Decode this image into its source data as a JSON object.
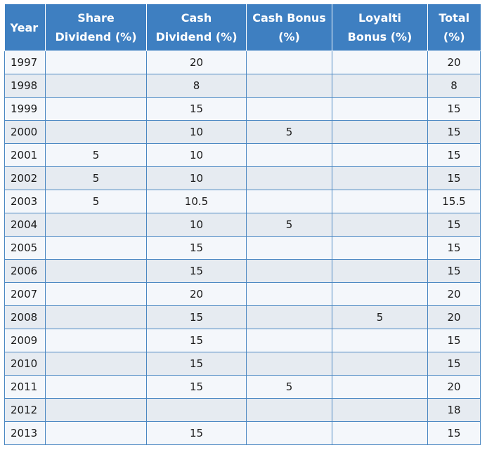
{
  "headers": {
    "year": "Year",
    "share_line1": "Share",
    "share_line2": "Dividend (%)",
    "cash_line1": "Cash",
    "cash_line2": "Dividend (%)",
    "bonus_line1": "Cash Bonus",
    "bonus_line2": "(%)",
    "loyalti_line1": "Loyalti",
    "loyalti_line2": "Bonus (%)",
    "total_line1": "Total",
    "total_line2": "(%)"
  },
  "rows": [
    [
      "1997",
      "",
      "20",
      "",
      "",
      "20"
    ],
    [
      "1998",
      "",
      "8",
      "",
      "",
      "8"
    ],
    [
      "1999",
      "",
      "15",
      "",
      "",
      "15"
    ],
    [
      "2000",
      "",
      "10",
      "5",
      "",
      "15"
    ],
    [
      "2001",
      "5",
      "10",
      "",
      "",
      "15"
    ],
    [
      "2002",
      "5",
      "10",
      "",
      "",
      "15"
    ],
    [
      "2003",
      "5",
      "10.5",
      "",
      "",
      "15.5"
    ],
    [
      "2004",
      "",
      "10",
      "5",
      "",
      "15"
    ],
    [
      "2005",
      "",
      "15",
      "",
      "",
      "15"
    ],
    [
      "2006",
      "",
      "15",
      "",
      "",
      "15"
    ],
    [
      "2007",
      "",
      "20",
      "",
      "",
      "20"
    ],
    [
      "2008",
      "",
      "15",
      "",
      "5",
      "20"
    ],
    [
      "2009",
      "",
      "15",
      "",
      "",
      "15"
    ],
    [
      "2010",
      "",
      "15",
      "",
      "",
      "15"
    ],
    [
      "2011",
      "",
      "15",
      "5",
      "",
      "20"
    ],
    [
      "2012",
      "",
      "",
      "",
      "",
      "18"
    ],
    [
      "2013",
      "",
      "15",
      "",
      "",
      "15"
    ]
  ],
  "colors": {
    "header_bg": "#3e7fc1",
    "row_odd": "#f4f7fb",
    "row_even": "#e6ebf1",
    "grid": "#4a87c2"
  }
}
